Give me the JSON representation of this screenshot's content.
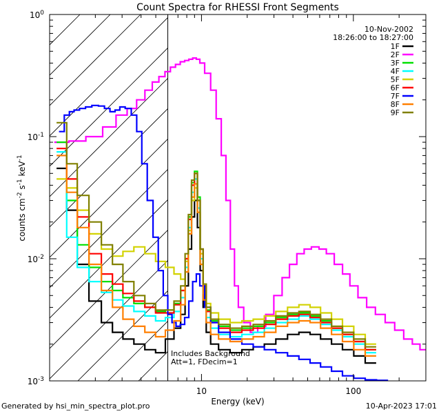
{
  "footer": {
    "generator": "Generated by hsi_min_spectra_plot.pro",
    "timestamp": "10-Apr-2023 17:01"
  },
  "chart_data": {
    "type": "line",
    "title": "Count Spectra for RHESSI Front Segments",
    "xlabel": "Energy (keV)",
    "ylabel_parts": [
      "counts cm",
      "-2",
      " s",
      "-1",
      " keV",
      "-1"
    ],
    "xscale": "log",
    "yscale": "log",
    "xlim": [
      1,
      300
    ],
    "ylim": [
      0.001,
      1
    ],
    "x_ticks": [
      {
        "v": 10,
        "label": "10"
      },
      {
        "v": 100,
        "label": "100"
      }
    ],
    "y_ticks": [
      {
        "v": 1,
        "base": "10",
        "exp": "0"
      },
      {
        "v": 0.1,
        "base": "10",
        "exp": "-1"
      },
      {
        "v": 0.01,
        "base": "10",
        "exp": "-2"
      },
      {
        "v": 0.001,
        "base": "10",
        "exp": "-3"
      }
    ],
    "hatch_region_xmax": 6,
    "date_label": "10-Nov-2002",
    "time_label": "18:26:00 to 18:27:00",
    "annotation_lines": [
      "Includes Background",
      "Att=1, FDecim=1"
    ],
    "legend_position": "top-right",
    "series": [
      {
        "name": "1F",
        "color": "#000000",
        "x": [
          1.2,
          1.4,
          1.65,
          2.0,
          2.4,
          2.8,
          3.3,
          3.9,
          4.6,
          5.4,
          6.2,
          7.0,
          7.6,
          8.0,
          8.4,
          8.8,
          9.2,
          9.6,
          10.0,
          10.5,
          11.0,
          12.0,
          14.0,
          17.0,
          20.0,
          24.0,
          28.0,
          34.0,
          40.0,
          48.0,
          56.0,
          66.0,
          78.0,
          92.0,
          110.0,
          130.0
        ],
        "y": [
          0.055,
          0.025,
          0.009,
          0.0045,
          0.003,
          0.0025,
          0.0022,
          0.002,
          0.0018,
          0.0017,
          0.0022,
          0.0027,
          0.0035,
          0.006,
          0.012,
          0.022,
          0.03,
          0.018,
          0.008,
          0.004,
          0.0025,
          0.002,
          0.0018,
          0.0017,
          0.0018,
          0.0019,
          0.002,
          0.0022,
          0.0024,
          0.0025,
          0.0024,
          0.0022,
          0.002,
          0.0018,
          0.0016,
          0.0014
        ]
      },
      {
        "name": "2F",
        "color": "#ff00ff",
        "x": [
          1.2,
          1.5,
          2.0,
          2.5,
          3.0,
          3.5,
          4.0,
          4.5,
          5.0,
          5.5,
          6.0,
          6.5,
          7.0,
          7.5,
          8.0,
          8.5,
          9.0,
          9.5,
          10.0,
          11.0,
          12.0,
          13.0,
          14.0,
          15.0,
          16.0,
          17.0,
          18.0,
          20.0,
          22.0,
          25.0,
          28.0,
          32.0,
          36.0,
          40.0,
          45.0,
          50.0,
          56.0,
          63.0,
          70.0,
          80.0,
          90.0,
          100.0,
          115.0,
          130.0,
          150.0,
          175.0,
          200.0,
          230.0,
          260.0,
          290.0
        ],
        "y": [
          0.09,
          0.092,
          0.1,
          0.12,
          0.15,
          0.17,
          0.2,
          0.24,
          0.28,
          0.31,
          0.34,
          0.37,
          0.39,
          0.41,
          0.42,
          0.43,
          0.44,
          0.43,
          0.4,
          0.33,
          0.24,
          0.14,
          0.07,
          0.03,
          0.012,
          0.006,
          0.004,
          0.003,
          0.0025,
          0.0028,
          0.0035,
          0.005,
          0.007,
          0.009,
          0.011,
          0.012,
          0.0125,
          0.012,
          0.011,
          0.009,
          0.0075,
          0.006,
          0.0048,
          0.004,
          0.0035,
          0.003,
          0.0026,
          0.0022,
          0.002,
          0.0018
        ]
      },
      {
        "name": "3F",
        "color": "#00e000",
        "x": [
          1.2,
          1.4,
          1.65,
          2.0,
          2.4,
          2.8,
          3.3,
          3.9,
          4.6,
          5.4,
          6.2,
          7.0,
          7.6,
          8.0,
          8.4,
          8.8,
          9.2,
          9.6,
          10.0,
          10.5,
          11.0,
          12.0,
          14.0,
          17.0,
          20.0,
          24.0,
          28.0,
          34.0,
          40.0,
          48.0,
          56.0,
          66.0,
          78.0,
          92.0,
          110.0,
          130.0
        ],
        "y": [
          0.09,
          0.03,
          0.013,
          0.0085,
          0.0065,
          0.0055,
          0.0048,
          0.0043,
          0.004,
          0.0037,
          0.0038,
          0.0043,
          0.0055,
          0.01,
          0.022,
          0.042,
          0.052,
          0.032,
          0.012,
          0.006,
          0.0038,
          0.0031,
          0.0028,
          0.0026,
          0.0027,
          0.0028,
          0.003,
          0.0033,
          0.0035,
          0.0036,
          0.0034,
          0.0031,
          0.0027,
          0.0024,
          0.0021,
          0.0018
        ]
      },
      {
        "name": "4F",
        "color": "#00ffff",
        "x": [
          1.2,
          1.4,
          1.65,
          2.0,
          2.4,
          2.8,
          3.3,
          3.9,
          4.6,
          5.4,
          6.2,
          7.0,
          7.6,
          8.0,
          8.4,
          8.8,
          9.2,
          9.6,
          10.0,
          10.5,
          11.0,
          12.0,
          14.0,
          17.0,
          20.0,
          24.0,
          28.0,
          34.0,
          40.0,
          48.0,
          56.0,
          66.0,
          78.0,
          92.0,
          110.0,
          130.0
        ],
        "y": [
          0.075,
          0.015,
          0.0085,
          0.0065,
          0.0053,
          0.0046,
          0.0041,
          0.0037,
          0.0034,
          0.0031,
          0.0033,
          0.0037,
          0.0048,
          0.0085,
          0.018,
          0.035,
          0.045,
          0.026,
          0.01,
          0.0052,
          0.0033,
          0.0027,
          0.0024,
          0.0023,
          0.0024,
          0.0025,
          0.0027,
          0.003,
          0.0032,
          0.0034,
          0.0032,
          0.0029,
          0.0026,
          0.0023,
          0.002,
          0.0017
        ]
      },
      {
        "name": "5F",
        "color": "#d2d200",
        "x": [
          1.2,
          1.4,
          1.65,
          2.0,
          2.4,
          2.8,
          3.3,
          3.9,
          4.6,
          5.4,
          6.2,
          7.0,
          7.6,
          8.0,
          8.4,
          8.8,
          9.2,
          9.6,
          10.0,
          10.5,
          11.0,
          12.0,
          14.0,
          17.0,
          20.0,
          24.0,
          28.0,
          34.0,
          40.0,
          48.0,
          56.0,
          66.0,
          78.0,
          92.0,
          110.0,
          130.0
        ],
        "y": [
          0.045,
          0.038,
          0.025,
          0.016,
          0.012,
          0.0105,
          0.0115,
          0.0125,
          0.011,
          0.0095,
          0.0085,
          0.0075,
          0.0068,
          0.0095,
          0.017,
          0.03,
          0.038,
          0.024,
          0.011,
          0.0062,
          0.0043,
          0.0036,
          0.0032,
          0.003,
          0.0031,
          0.0032,
          0.0034,
          0.0037,
          0.004,
          0.0042,
          0.004,
          0.0036,
          0.0032,
          0.0028,
          0.0024,
          0.002
        ]
      },
      {
        "name": "6F",
        "color": "#ff0000",
        "x": [
          1.2,
          1.4,
          1.65,
          2.0,
          2.4,
          2.8,
          3.3,
          3.9,
          4.6,
          5.4,
          6.2,
          7.0,
          7.6,
          8.0,
          8.4,
          8.8,
          9.2,
          9.6,
          10.0,
          10.5,
          11.0,
          12.0,
          14.0,
          17.0,
          20.0,
          24.0,
          28.0,
          34.0,
          40.0,
          48.0,
          56.0,
          66.0,
          78.0,
          92.0,
          110.0,
          130.0
        ],
        "y": [
          0.08,
          0.045,
          0.022,
          0.011,
          0.0075,
          0.0062,
          0.0052,
          0.0045,
          0.004,
          0.0036,
          0.0036,
          0.0042,
          0.0055,
          0.01,
          0.021,
          0.04,
          0.05,
          0.03,
          0.012,
          0.006,
          0.0037,
          0.003,
          0.0027,
          0.0025,
          0.0026,
          0.0027,
          0.0029,
          0.0032,
          0.0034,
          0.0035,
          0.0033,
          0.003,
          0.0027,
          0.0024,
          0.0021,
          0.0018
        ]
      },
      {
        "name": "7F",
        "color": "#0000ff",
        "x": [
          1.2,
          1.3,
          1.4,
          1.5,
          1.65,
          1.8,
          2.0,
          2.2,
          2.4,
          2.6,
          2.8,
          3.0,
          3.3,
          3.6,
          3.9,
          4.2,
          4.6,
          5.0,
          5.4,
          5.8,
          6.2,
          6.6,
          7.0,
          7.5,
          8.0,
          8.5,
          9.0,
          9.5,
          10.0,
          11.0,
          12.0,
          14.0,
          17.0,
          20.0,
          24.0,
          28.0,
          34.0,
          40.0,
          48.0,
          56.0,
          66.0,
          78.0,
          92.0,
          110.0,
          130.0,
          155.0
        ],
        "y": [
          0.11,
          0.15,
          0.16,
          0.165,
          0.17,
          0.175,
          0.18,
          0.178,
          0.17,
          0.16,
          0.165,
          0.175,
          0.17,
          0.15,
          0.11,
          0.06,
          0.03,
          0.015,
          0.008,
          0.005,
          0.0035,
          0.003,
          0.0028,
          0.0029,
          0.0033,
          0.0045,
          0.0065,
          0.0075,
          0.006,
          0.004,
          0.003,
          0.0025,
          0.0022,
          0.002,
          0.0019,
          0.0018,
          0.0017,
          0.0016,
          0.0015,
          0.0014,
          0.0013,
          0.0012,
          0.0011,
          0.00105,
          0.00102,
          0.00101
        ]
      },
      {
        "name": "8F",
        "color": "#ff7f00",
        "x": [
          1.2,
          1.4,
          1.65,
          2.0,
          2.4,
          2.8,
          3.3,
          3.9,
          4.6,
          5.4,
          6.2,
          7.0,
          7.6,
          8.0,
          8.4,
          8.8,
          9.2,
          9.6,
          10.0,
          10.5,
          11.0,
          12.0,
          14.0,
          17.0,
          20.0,
          24.0,
          28.0,
          34.0,
          40.0,
          48.0,
          56.0,
          66.0,
          78.0,
          92.0,
          110.0,
          130.0
        ],
        "y": [
          0.07,
          0.035,
          0.018,
          0.009,
          0.0055,
          0.004,
          0.0032,
          0.0028,
          0.0025,
          0.0023,
          0.0026,
          0.0031,
          0.0042,
          0.0078,
          0.016,
          0.032,
          0.041,
          0.024,
          0.009,
          0.0046,
          0.003,
          0.0024,
          0.0022,
          0.0021,
          0.0022,
          0.0023,
          0.0025,
          0.0028,
          0.003,
          0.0031,
          0.003,
          0.0027,
          0.0024,
          0.0021,
          0.0018,
          0.0016
        ]
      },
      {
        "name": "9F",
        "color": "#808000",
        "x": [
          1.2,
          1.4,
          1.65,
          2.0,
          2.4,
          2.8,
          3.3,
          3.9,
          4.6,
          5.4,
          6.2,
          7.0,
          7.6,
          8.0,
          8.4,
          8.8,
          9.2,
          9.6,
          10.0,
          10.5,
          11.0,
          12.0,
          14.0,
          17.0,
          20.0,
          24.0,
          28.0,
          34.0,
          40.0,
          48.0,
          56.0,
          66.0,
          78.0,
          92.0,
          110.0,
          130.0
        ],
        "y": [
          0.13,
          0.06,
          0.033,
          0.02,
          0.013,
          0.009,
          0.0065,
          0.005,
          0.0043,
          0.0038,
          0.0038,
          0.0045,
          0.006,
          0.011,
          0.023,
          0.044,
          0.05,
          0.03,
          0.012,
          0.0062,
          0.004,
          0.0032,
          0.0029,
          0.0027,
          0.0028,
          0.0029,
          0.0031,
          0.0034,
          0.0036,
          0.0037,
          0.0035,
          0.0032,
          0.0028,
          0.0025,
          0.0022,
          0.0019
        ]
      }
    ]
  }
}
